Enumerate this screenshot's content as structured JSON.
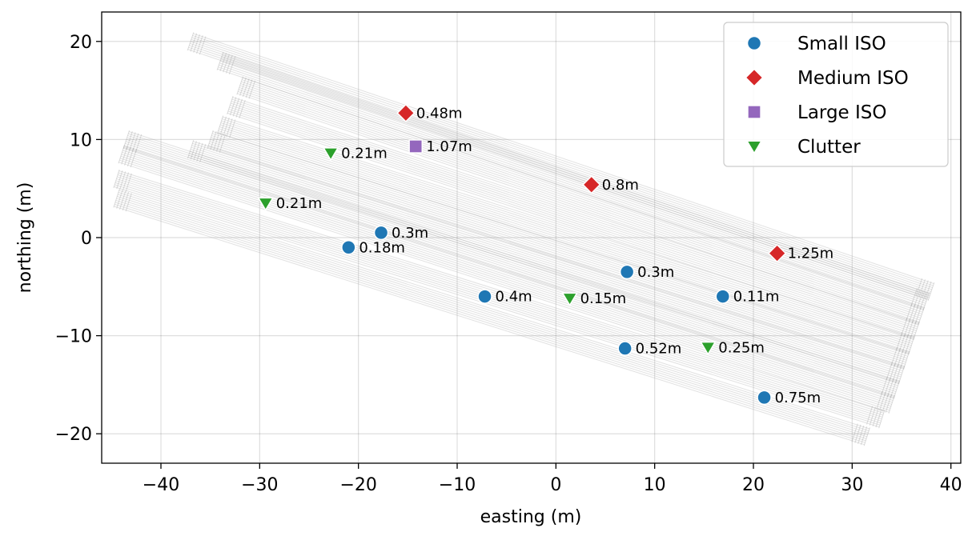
{
  "chart_data": {
    "type": "scatter",
    "title": "",
    "xlabel": "easting (m)",
    "ylabel": "northing (m)",
    "xlim": [
      -46,
      41
    ],
    "ylim": [
      -23,
      23
    ],
    "xticks": [
      -40,
      -30,
      -20,
      -10,
      0,
      10,
      20,
      30,
      40
    ],
    "yticks": [
      -20,
      -10,
      0,
      10,
      20
    ],
    "xtick_labels": [
      "−40",
      "−30",
      "−20",
      "−10",
      "0",
      "10",
      "20",
      "30",
      "40"
    ],
    "ytick_labels": [
      "−20",
      "−10",
      "0",
      "10",
      "20"
    ],
    "grid": true,
    "legend_position": "top-right",
    "series": [
      {
        "name": "Small ISO",
        "marker": "circle",
        "color": "#1f77b4",
        "points": [
          {
            "x": -17.7,
            "y": 0.5,
            "label": "0.3m"
          },
          {
            "x": -21.0,
            "y": -1.0,
            "label": "0.18m"
          },
          {
            "x": 7.2,
            "y": -3.5,
            "label": "0.3m"
          },
          {
            "x": -7.2,
            "y": -6.0,
            "label": "0.4m"
          },
          {
            "x": 16.9,
            "y": -6.0,
            "label": "0.11m"
          },
          {
            "x": 7.0,
            "y": -11.3,
            "label": "0.52m"
          },
          {
            "x": 21.1,
            "y": -16.3,
            "label": "0.75m"
          }
        ]
      },
      {
        "name": "Medium ISO",
        "marker": "diamond",
        "color": "#d62728",
        "points": [
          {
            "x": -15.2,
            "y": 12.7,
            "label": "0.48m"
          },
          {
            "x": 3.6,
            "y": 5.4,
            "label": "0.8m"
          },
          {
            "x": 22.4,
            "y": -1.6,
            "label": "1.25m"
          }
        ]
      },
      {
        "name": "Large ISO",
        "marker": "square",
        "color": "#9467bd",
        "points": [
          {
            "x": -14.2,
            "y": 9.3,
            "label": "1.07m"
          }
        ]
      },
      {
        "name": "Clutter",
        "marker": "triangle-down",
        "color": "#2ca02c",
        "points": [
          {
            "x": -22.8,
            "y": 8.6,
            "label": "0.21m"
          },
          {
            "x": -29.4,
            "y": 3.5,
            "label": "0.21m"
          },
          {
            "x": 1.4,
            "y": -6.2,
            "label": "0.15m"
          },
          {
            "x": 15.4,
            "y": -11.2,
            "label": "0.25m"
          }
        ]
      }
    ],
    "survey_tracks": {
      "color": "#9a9a9a",
      "lines": [
        {
          "x1": -37.0,
          "y1": 20.0,
          "x2": 38.0,
          "y2": -5.5
        },
        {
          "x1": -34.0,
          "y1": 18.0,
          "x2": 37.5,
          "y2": -6.5
        },
        {
          "x1": -32.0,
          "y1": 15.5,
          "x2": 37.0,
          "y2": -8.0
        },
        {
          "x1": -33.0,
          "y1": 13.5,
          "x2": 36.5,
          "y2": -9.5
        },
        {
          "x1": -34.0,
          "y1": 11.5,
          "x2": 36.0,
          "y2": -11.0
        },
        {
          "x1": -35.0,
          "y1": 10.0,
          "x2": 35.5,
          "y2": -12.5
        },
        {
          "x1": -37.0,
          "y1": 9.0,
          "x2": 35.0,
          "y2": -14.0
        },
        {
          "x1": -43.5,
          "y1": 10.0,
          "x2": 34.5,
          "y2": -15.5
        },
        {
          "x1": -44.0,
          "y1": 8.5,
          "x2": 34.0,
          "y2": -17.0
        },
        {
          "x1": -44.5,
          "y1": 6.0,
          "x2": 33.0,
          "y2": -18.5
        },
        {
          "x1": -44.5,
          "y1": 4.0,
          "x2": 31.5,
          "y2": -20.3
        }
      ]
    }
  }
}
